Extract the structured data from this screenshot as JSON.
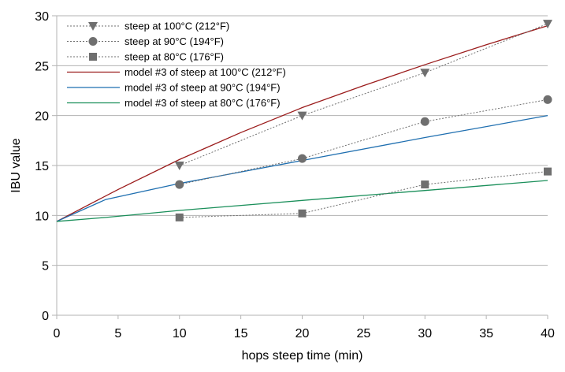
{
  "chart_data": {
    "type": "line",
    "xlabel": "hops steep time (min)",
    "ylabel": "IBU value",
    "xlim": [
      0,
      40
    ],
    "ylim": [
      0,
      30
    ],
    "xticks": [
      0,
      5,
      10,
      15,
      20,
      25,
      30,
      35,
      40
    ],
    "yticks": [
      0,
      5,
      10,
      15,
      20,
      25,
      30
    ],
    "grid": "horizontal",
    "legend_position": "top-left",
    "series": [
      {
        "name": "steep at 100°C (212°F)",
        "kind": "measured",
        "marker": "triangle-down",
        "line": "dotted",
        "color": "#6f6f6f",
        "x": [
          10,
          20,
          30,
          40
        ],
        "y": [
          15.0,
          20.0,
          24.3,
          29.2
        ]
      },
      {
        "name": "steep at 90°C (194°F)",
        "kind": "measured",
        "marker": "circle",
        "line": "dotted",
        "color": "#6f6f6f",
        "x": [
          10,
          20,
          30,
          40
        ],
        "y": [
          13.1,
          15.7,
          19.4,
          21.6
        ]
      },
      {
        "name": "steep at 80°C (176°F)",
        "kind": "measured",
        "marker": "square",
        "line": "dotted",
        "color": "#6f6f6f",
        "x": [
          10,
          20,
          30,
          40
        ],
        "y": [
          9.8,
          10.2,
          13.1,
          14.4
        ]
      },
      {
        "name": "model #3 of steep at 100°C (212°F)",
        "kind": "model",
        "line": "solid",
        "color": "#9b1c1c",
        "x": [
          0,
          5,
          10,
          15,
          20,
          25,
          30,
          35,
          40
        ],
        "y": [
          9.4,
          12.6,
          15.6,
          18.3,
          20.8,
          23.0,
          25.1,
          27.1,
          29.0
        ]
      },
      {
        "name": "model #3 of steep at 90°C (194°F)",
        "kind": "model",
        "line": "solid",
        "color": "#1f6fb0",
        "x": [
          0,
          4,
          10,
          20,
          30,
          40
        ],
        "y": [
          9.4,
          11.6,
          13.2,
          15.5,
          17.8,
          20.0
        ]
      },
      {
        "name": "model #3 of steep at 80°C (176°F)",
        "kind": "model",
        "line": "solid",
        "color": "#1a8f5a",
        "x": [
          0,
          4,
          10,
          20,
          30,
          40
        ],
        "y": [
          9.4,
          9.8,
          10.5,
          11.5,
          12.5,
          13.5
        ]
      }
    ]
  }
}
